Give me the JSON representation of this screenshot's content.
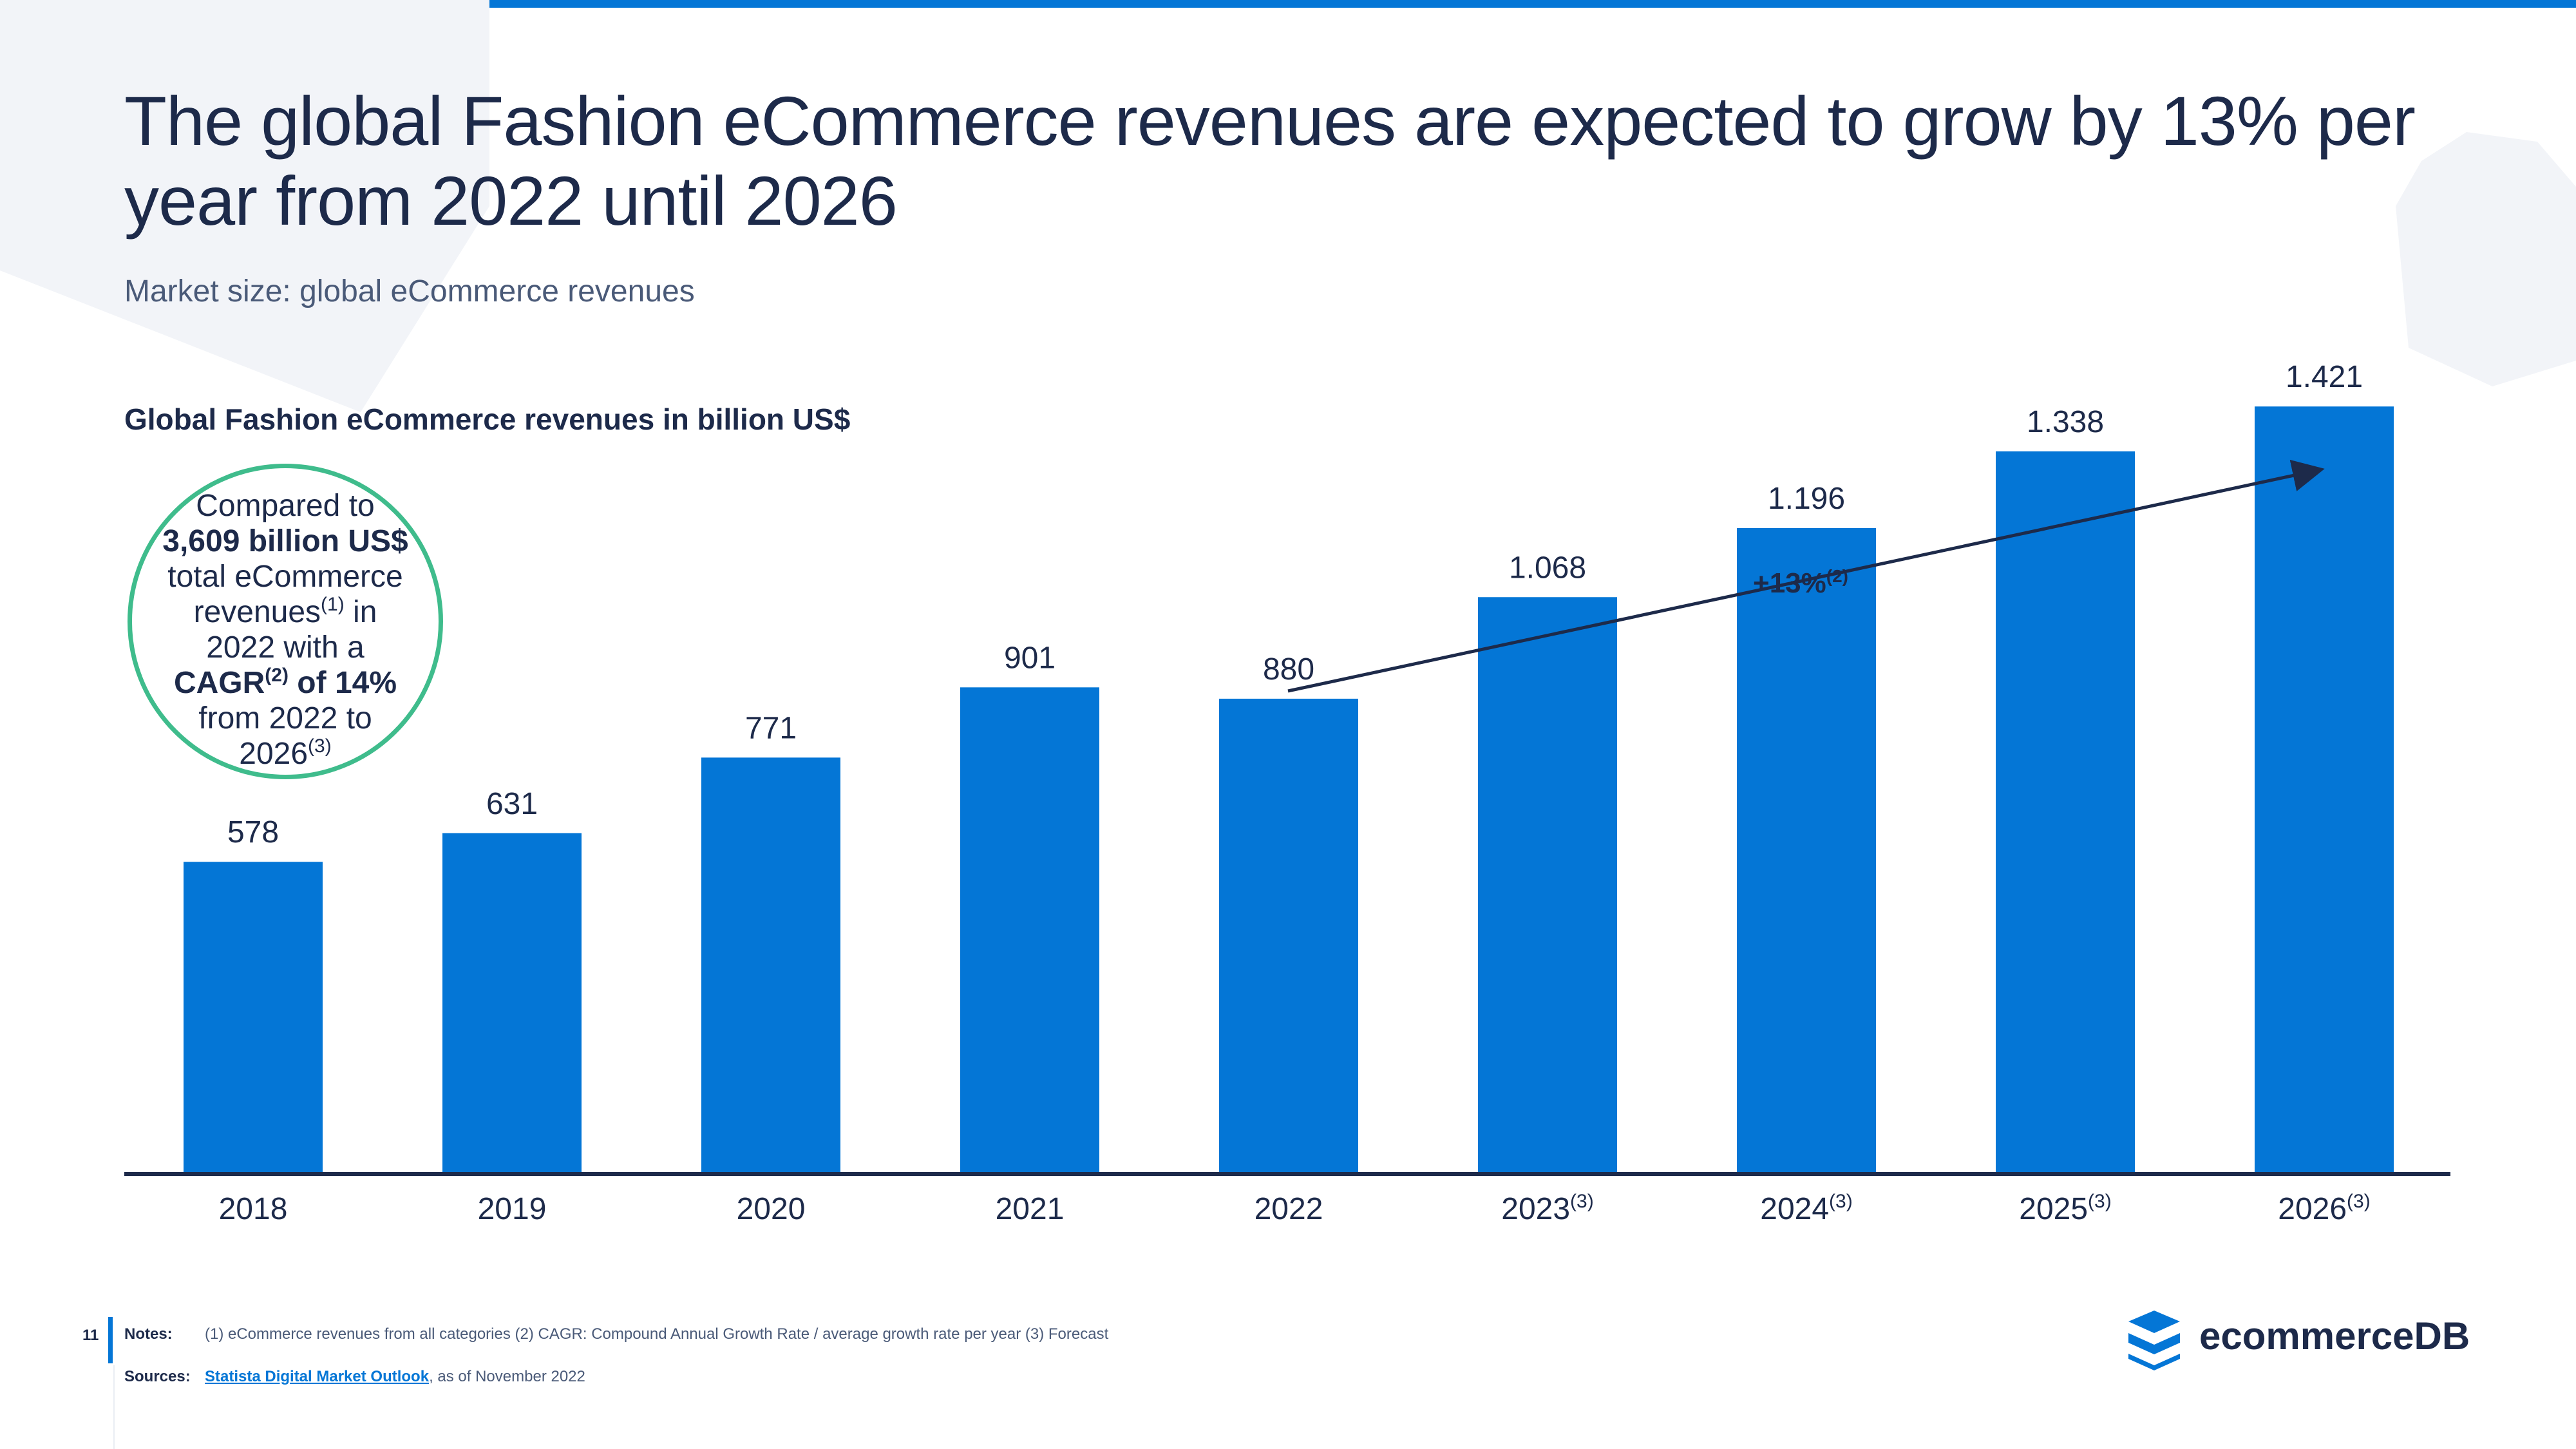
{
  "header": {
    "title": "The global Fashion eCommerce revenues are expected to grow by 13% per year from 2022 until 2026",
    "subtitle": "Market size: global eCommerce revenues",
    "chart_title": "Global Fashion eCommerce revenues in billion US$"
  },
  "callout": {
    "line1": "Compared to",
    "line2": "3,609 billion US$",
    "line3": "total eCommerce",
    "line4_text": "revenues",
    "line4_sup": "(1)",
    "line4_after": " in",
    "line5": "2022 with a",
    "line6_cagr": "CAGR",
    "line6_sup": "(2)",
    "line6_after": " of 14%",
    "line7": "from 2022 to",
    "line8_text": "2026",
    "line8_sup": "(3)"
  },
  "growth_label": {
    "text": "+13%",
    "sup": "(2)"
  },
  "chart_data": {
    "type": "bar",
    "title": "Global Fashion eCommerce revenues in billion US$",
    "categories": [
      "2018",
      "2019",
      "2020",
      "2021",
      "2022",
      "2023",
      "2024",
      "2025",
      "2026"
    ],
    "category_sups": [
      "",
      "",
      "",
      "",
      "",
      "(3)",
      "(3)",
      "(3)",
      "(3)"
    ],
    "values": [
      578,
      631,
      771,
      901,
      880,
      1068,
      1196,
      1338,
      1421
    ],
    "value_labels": [
      "578",
      "631",
      "771",
      "901",
      "880",
      "1.068",
      "1.196",
      "1.338",
      "1.421"
    ],
    "ylim": [
      0,
      1550
    ],
    "grid": false,
    "bar_color": "#0476d6",
    "axis_color": "#1d2a4a"
  },
  "footer": {
    "page_number": "11",
    "notes_label": "Notes:",
    "notes_text": "(1) eCommerce revenues from all categories (2) CAGR: Compound Annual Growth Rate / average growth rate per year (3) Forecast",
    "sources_label": "Sources:",
    "sources_link": "Statista Digital Market Outlook",
    "sources_after": ", as of November 2022",
    "logo_text": "ecommerceDB"
  },
  "colors": {
    "accent": "#0476d6",
    "callout_border": "#3fbc8c",
    "text_dark": "#1d2a4a"
  }
}
